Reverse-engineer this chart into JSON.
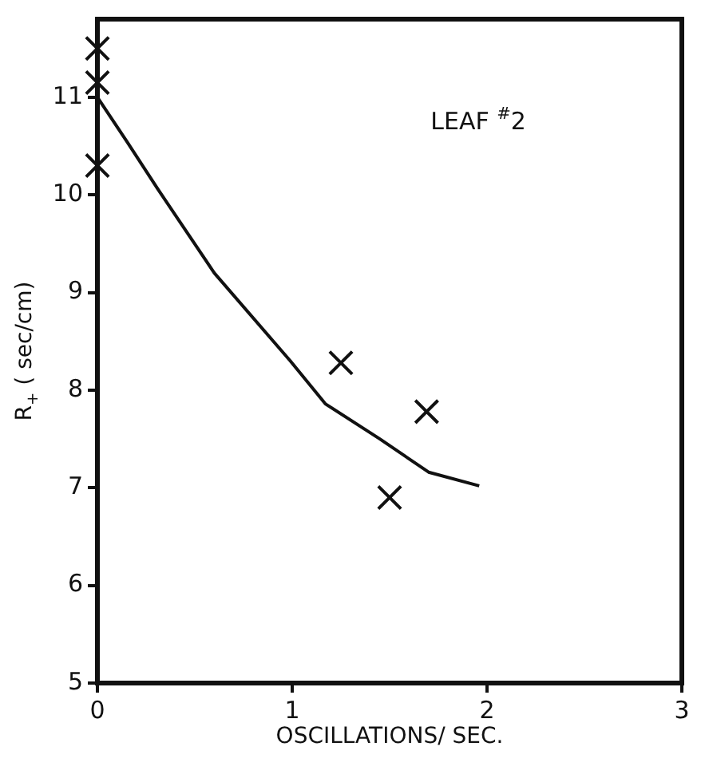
{
  "chart_data": {
    "type": "scatter",
    "xlabel": "OSCILLATIONS/ SEC.",
    "ylabel": "R$_{+}$ ( sec/cm)",
    "annotations": [
      "LEAF $^{#}$2"
    ],
    "xlim": [
      0,
      3
    ],
    "xticks": [
      0,
      1,
      2,
      3
    ],
    "ylim": [
      5,
      11.8
    ],
    "yticks": [
      5,
      6,
      7,
      8,
      9,
      10,
      11
    ],
    "grid": false,
    "legend": false,
    "marker": "cross",
    "series": [
      {
        "color": "#111111",
        "x": [
          0,
          0,
          0,
          1.25,
          1.5,
          1.69
        ],
        "values": [
          11.5,
          11.15,
          10.3,
          8.28,
          6.9,
          7.78
        ]
      },
      {
        "type": "line",
        "color": "#111111",
        "marker": "none",
        "line_style": "solid",
        "x": [
          0,
          0.15,
          0.31,
          0.6,
          0.99,
          1.17,
          1.45,
          1.7,
          1.96
        ],
        "values": [
          11.0,
          10.55,
          10.06,
          9.2,
          8.3,
          7.86,
          7.5,
          7.16,
          7.02
        ]
      }
    ]
  }
}
